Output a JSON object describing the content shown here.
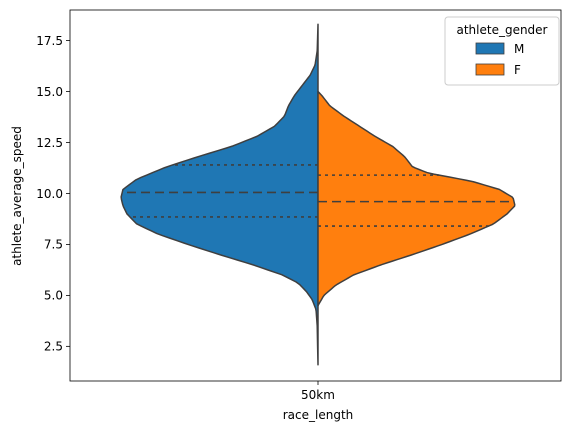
{
  "chart_data": {
    "type": "violin",
    "split": true,
    "x_categories": [
      "50km"
    ],
    "xlabel": "race_length",
    "ylabel": "athlete_average_speed",
    "ylim": [
      0.8,
      19.0
    ],
    "y_ticks": [
      2.5,
      5.0,
      7.5,
      10.0,
      12.5,
      15.0,
      17.5
    ],
    "y_tick_labels": [
      "2.5",
      "5.0",
      "7.5",
      "10.0",
      "12.5",
      "15.0",
      "17.5"
    ],
    "grid": false,
    "legend": {
      "title": "athlete_gender",
      "placement": "top-right",
      "entries": [
        "M",
        "F"
      ]
    },
    "series": [
      {
        "name": "M",
        "side": "left",
        "color": "#1f77b4",
        "y_min": 1.6,
        "y_max": 18.3,
        "quartiles": {
          "q1": 8.85,
          "median": 10.05,
          "q3": 11.4
        },
        "density_profile": [
          [
            1.6,
            0.0
          ],
          [
            2.5,
            0.002
          ],
          [
            3.5,
            0.004
          ],
          [
            4.3,
            0.01
          ],
          [
            4.8,
            0.03
          ],
          [
            5.2,
            0.06
          ],
          [
            5.6,
            0.1
          ],
          [
            6.0,
            0.18
          ],
          [
            6.5,
            0.33
          ],
          [
            7.0,
            0.5
          ],
          [
            7.5,
            0.66
          ],
          [
            8.0,
            0.81
          ],
          [
            8.5,
            0.92
          ],
          [
            9.0,
            0.97
          ],
          [
            9.4,
            0.99
          ],
          [
            9.8,
            1.0
          ],
          [
            10.2,
            0.99
          ],
          [
            10.7,
            0.92
          ],
          [
            11.3,
            0.77
          ],
          [
            11.8,
            0.61
          ],
          [
            12.3,
            0.44
          ],
          [
            12.8,
            0.31
          ],
          [
            13.3,
            0.22
          ],
          [
            13.8,
            0.17
          ],
          [
            14.3,
            0.15
          ],
          [
            14.8,
            0.12
          ],
          [
            15.3,
            0.08
          ],
          [
            15.8,
            0.04
          ],
          [
            16.3,
            0.015
          ],
          [
            17.0,
            0.004
          ],
          [
            18.3,
            0.0
          ]
        ]
      },
      {
        "name": "F",
        "side": "right",
        "color": "#ff7f0e",
        "y_min": 4.5,
        "y_max": 15.0,
        "quartiles": {
          "q1": 8.4,
          "median": 9.6,
          "q3": 10.9
        },
        "density_profile": [
          [
            4.5,
            0.0
          ],
          [
            5.0,
            0.03
          ],
          [
            5.5,
            0.09
          ],
          [
            6.0,
            0.18
          ],
          [
            6.5,
            0.32
          ],
          [
            7.0,
            0.48
          ],
          [
            7.5,
            0.63
          ],
          [
            8.0,
            0.77
          ],
          [
            8.5,
            0.89
          ],
          [
            9.0,
            0.96
          ],
          [
            9.4,
            1.0
          ],
          [
            9.8,
            0.99
          ],
          [
            10.2,
            0.92
          ],
          [
            10.6,
            0.78
          ],
          [
            11.0,
            0.56
          ],
          [
            11.3,
            0.48
          ],
          [
            11.8,
            0.44
          ],
          [
            12.3,
            0.38
          ],
          [
            12.8,
            0.29
          ],
          [
            13.3,
            0.21
          ],
          [
            13.8,
            0.13
          ],
          [
            14.3,
            0.06
          ],
          [
            14.8,
            0.02
          ],
          [
            15.0,
            0.0
          ]
        ]
      }
    ]
  }
}
